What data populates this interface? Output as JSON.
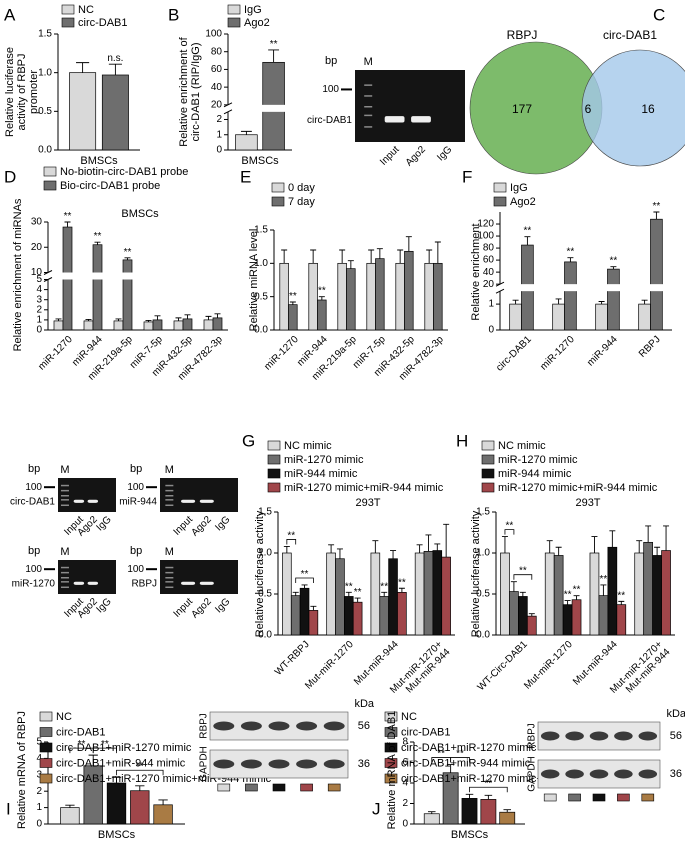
{
  "chart_data": [
    {
      "type": "bar",
      "panel": "A",
      "ylabel": "Relative luciferase activity of RBPJ promoter",
      "categories": [
        "BMSCs"
      ],
      "series": [
        {
          "name": "NC",
          "color": "#d9d9d9",
          "values": [
            1.0
          ],
          "errors": [
            0.13
          ]
        },
        {
          "name": "circ-DAB1",
          "color": "#6e6e6e",
          "values": [
            0.97
          ],
          "errors": [
            0.14
          ]
        }
      ],
      "ylim": [
        0,
        1.5
      ],
      "yticks": [
        {
          "value": 0,
          "label": "0.0"
        },
        0.5,
        {
          "value": 1,
          "label": "1.0"
        },
        1.5
      ],
      "significance": [
        {
          "label": "n.s.",
          "category": 0,
          "series": 1
        }
      ]
    },
    {
      "type": "bar",
      "panel": "B",
      "ylabel": "Relative enrichment of circ-DAB1 (RIP/IgG)",
      "categories": [
        "BMSCs"
      ],
      "series": [
        {
          "name": "IgG",
          "color": "#d9d9d9",
          "values": [
            1.0
          ],
          "errors": [
            0.22
          ]
        },
        {
          "name": "Ago2",
          "color": "#6e6e6e",
          "values": [
            68
          ],
          "errors": [
            14
          ]
        }
      ],
      "ysegments": [
        {
          "ylim": [
            0,
            2.5
          ],
          "yticks": [
            0,
            1,
            2
          ]
        },
        {
          "ylim": [
            20,
            100
          ],
          "yticks": [
            20,
            40,
            60,
            80,
            100
          ]
        }
      ],
      "significance": [
        {
          "label": "**",
          "category": 0,
          "series": 1
        }
      ],
      "gel": {
        "bp": "bp",
        "marker": "M",
        "size": 100,
        "band": "circ-DAB1",
        "lanes": [
          "Input",
          "Ago2",
          "IgG"
        ]
      }
    },
    {
      "type": "venn",
      "panel": "C",
      "sets": [
        {
          "name": "RBPJ",
          "color": "#7dbb6b",
          "count": 177
        },
        {
          "name": "circ-DAB1",
          "color": "#a4c8ea",
          "count": 16
        }
      ],
      "overlap": 6
    },
    {
      "type": "bar",
      "panel": "D",
      "ylabel": "Relative enrichment of miRNAs",
      "subtitle": "BMSCs",
      "categories": [
        "miR-1270",
        "miR-944",
        "miR-219a-5p",
        "miR-7-5p",
        "miR-432-5p",
        "miR-4782-3p"
      ],
      "series": [
        {
          "name": "No-biotin-circ-DAB1 probe",
          "color": "#d9d9d9",
          "values": [
            0.9,
            0.9,
            0.9,
            0.8,
            0.9,
            1.0
          ],
          "errors": [
            0.2,
            0.15,
            0.2,
            0.15,
            0.3,
            0.35
          ]
        },
        {
          "name": "Bio-circ-DAB1 probe",
          "color": "#6e6e6e",
          "values": [
            28,
            21,
            15,
            1.0,
            1.1,
            1.2
          ],
          "errors": [
            2,
            1,
            0.8,
            0.4,
            0.4,
            0.4
          ]
        }
      ],
      "ysegments": [
        {
          "ylim": [
            0,
            5
          ],
          "yticks": [
            0,
            1,
            2,
            3,
            4,
            5
          ]
        },
        {
          "ylim": [
            10,
            30
          ],
          "yticks": [
            10,
            20,
            30
          ]
        }
      ],
      "significance": [
        {
          "label": "**",
          "category": 0,
          "series": 1
        },
        {
          "label": "**",
          "category": 1,
          "series": 1
        },
        {
          "label": "**",
          "category": 2,
          "series": 1
        }
      ]
    },
    {
      "type": "bar",
      "panel": "E",
      "ylabel": "Relative miRNA level",
      "categories": [
        "miR-1270",
        "miR-944",
        "miR-219a-5p",
        "miR-7-5p",
        "miR-432-5p",
        "miR-4782-3p"
      ],
      "series": [
        {
          "name": "0 day",
          "color": "#d9d9d9",
          "values": [
            1,
            1,
            1,
            1,
            1,
            1
          ],
          "errors": [
            0.2,
            0.2,
            0.2,
            0.2,
            0.2,
            0.2
          ]
        },
        {
          "name": "7 day",
          "color": "#6e6e6e",
          "values": [
            0.38,
            0.45,
            0.92,
            1.07,
            1.18,
            1.0
          ],
          "errors": [
            0.04,
            0.05,
            0.12,
            0.15,
            0.22,
            0.32
          ]
        }
      ],
      "ylim": [
        0,
        1.5
      ],
      "yticks": [
        {
          "value": 0,
          "label": "0.0"
        },
        0.5,
        {
          "value": 1,
          "label": "1.0"
        },
        1.5
      ],
      "significance": [
        {
          "label": "**",
          "category": 0,
          "series": 1
        },
        {
          "label": "**",
          "category": 1,
          "series": 1
        }
      ]
    },
    {
      "type": "bar",
      "panel": "F",
      "ylabel": "Relative enrichment",
      "categories": [
        "circ-DAB1",
        "miR-1270",
        "miR-944",
        "RBPJ"
      ],
      "series": [
        {
          "name": "IgG",
          "color": "#d9d9d9",
          "values": [
            1,
            1,
            1,
            1
          ],
          "errors": [
            0.15,
            0.2,
            0.1,
            0.15
          ]
        },
        {
          "name": "Ago2",
          "color": "#6e6e6e",
          "values": [
            85,
            57,
            45,
            128
          ],
          "errors": [
            14,
            7,
            4,
            12
          ]
        }
      ],
      "ysegments": [
        {
          "ylim": [
            0,
            1.5
          ],
          "yticks": [
            0,
            1
          ]
        },
        {
          "ylim": [
            20,
            140
          ],
          "yticks": [
            20,
            40,
            60,
            80,
            100,
            120
          ]
        }
      ],
      "significance": [
        {
          "label": "**",
          "category": 0,
          "series": 1
        },
        {
          "label": "**",
          "category": 1,
          "series": 1
        },
        {
          "label": "**",
          "category": 2,
          "series": 1
        },
        {
          "label": "**",
          "category": 3,
          "series": 1
        }
      ]
    },
    {
      "type": "bar",
      "panel": "G",
      "ylabel": "Relative luciferase activity",
      "subtitle": "293T",
      "categories": [
        "WT-RBPJ",
        "Mut-miR-1270",
        "Mut-miR-944",
        "Mut-miR-1270+ Mut-miR-944"
      ],
      "series": [
        {
          "name": "NC mimic",
          "color": "#d9d9d9",
          "values": [
            1,
            1,
            1,
            1
          ],
          "errors": [
            0.08,
            0.1,
            0.15,
            0.1
          ]
        },
        {
          "name": "miR-1270 mimic",
          "color": "#6e6e6e",
          "values": [
            0.48,
            0.93,
            0.47,
            1.02
          ],
          "errors": [
            0.04,
            0.12,
            0.05,
            0.2
          ]
        },
        {
          "name": "miR-944 mimic",
          "color": "#111111",
          "values": [
            0.57,
            0.47,
            0.93,
            1.03
          ],
          "errors": [
            0.04,
            0.05,
            0.1,
            0.08
          ]
        },
        {
          "name": "miR-1270 mimic+miR-944 mimic",
          "color": "#a0464a",
          "values": [
            0.3,
            0.4,
            0.52,
            0.95
          ],
          "errors": [
            0.05,
            0.05,
            0.05,
            0.4
          ]
        }
      ],
      "ylim": [
        0,
        1.5
      ],
      "yticks": [
        {
          "value": 0,
          "label": "0.0"
        },
        0.5,
        {
          "value": 1,
          "label": "1.0"
        },
        1.5
      ],
      "significance": [
        {
          "label": "**",
          "category": 0,
          "series": [
            0,
            1
          ]
        },
        {
          "label": "**",
          "category": 0,
          "series": [
            1,
            3
          ]
        },
        {
          "label": "**",
          "category": 1,
          "series": 2
        },
        {
          "label": "**",
          "category": 1,
          "series": 3
        },
        {
          "label": "**",
          "category": 2,
          "series": 1
        },
        {
          "label": "**",
          "category": 2,
          "series": 3
        }
      ]
    },
    {
      "type": "bar",
      "panel": "H",
      "ylabel": "Relative luciferase activity",
      "subtitle": "293T",
      "categories": [
        "WT-Circ-DAB1",
        "Mut-miR-1270",
        "Mut-miR-944",
        "Mut-miR-1270+ Mut-miR-944"
      ],
      "series": [
        {
          "name": "NC mimic",
          "color": "#d9d9d9",
          "values": [
            1,
            1,
            1,
            1
          ],
          "errors": [
            0.2,
            0.15,
            0.2,
            0.15
          ]
        },
        {
          "name": "miR-1270 mimic",
          "color": "#6e6e6e",
          "values": [
            0.53,
            0.97,
            0.48,
            1.13
          ],
          "errors": [
            0.12,
            0.1,
            0.13,
            0.2
          ]
        },
        {
          "name": "miR-944 mimic",
          "color": "#111111",
          "values": [
            0.47,
            0.37,
            1.07,
            0.97
          ],
          "errors": [
            0.05,
            0.05,
            0.2,
            0.1
          ]
        },
        {
          "name": "miR-1270 mimic+miR-944 mimic",
          "color": "#a0464a",
          "values": [
            0.23,
            0.43,
            0.37,
            1.03
          ],
          "errors": [
            0.03,
            0.05,
            0.04,
            0.3
          ]
        }
      ],
      "ylim": [
        0,
        1.5
      ],
      "yticks": [
        {
          "value": 0,
          "label": "0.0"
        },
        0.5,
        {
          "value": 1,
          "label": "1.0"
        },
        1.5
      ],
      "significance": [
        {
          "label": "**",
          "category": 0,
          "series": [
            0,
            1
          ]
        },
        {
          "label": "**",
          "category": 0,
          "series": [
            1,
            3
          ]
        },
        {
          "label": "**",
          "category": 1,
          "series": 2
        },
        {
          "label": "**",
          "category": 1,
          "series": 3
        },
        {
          "label": "**",
          "category": 2,
          "series": 1
        },
        {
          "label": "**",
          "category": 2,
          "series": 3
        }
      ]
    },
    {
      "type": "bar",
      "panel": "I",
      "ylabel": "Relative mRNA of RBPJ",
      "categories": [
        "BMSCs"
      ],
      "series": [
        {
          "name": "NC",
          "color": "#d9d9d9",
          "values": [
            1.0
          ],
          "errors": [
            0.15
          ]
        },
        {
          "name": "circ-DAB1",
          "color": "#6e6e6e",
          "values": [
            3.55
          ],
          "errors": [
            0.65
          ]
        },
        {
          "name": "circ-DAB1+miR-1270 mimic",
          "color": "#111111",
          "values": [
            2.5
          ],
          "errors": [
            0.35
          ]
        },
        {
          "name": "circ-DAB1+miR-944 mimic",
          "color": "#a0464a",
          "values": [
            2.03
          ],
          "errors": [
            0.3
          ]
        },
        {
          "name": "circ-DAB1+miR-1270 mimic+miR-944 mimic",
          "color": "#a97b44",
          "values": [
            1.17
          ],
          "errors": [
            0.3
          ]
        }
      ],
      "ylim": [
        0,
        5
      ],
      "yticks": [
        0,
        1,
        2,
        3,
        4,
        5
      ],
      "significance": [
        {
          "label": "**",
          "category": 0,
          "series": [
            0,
            1
          ]
        },
        {
          "label": "**",
          "category": 0,
          "series": [
            1,
            2
          ]
        },
        {
          "label": "**",
          "category": 0,
          "series": [
            2,
            4
          ]
        }
      ],
      "blot": {
        "unit": "kDa",
        "rows": [
          {
            "name": "RBPJ",
            "size": 56
          },
          {
            "name": "GAPDH",
            "size": 36
          }
        ]
      }
    },
    {
      "type": "bar",
      "panel": "J",
      "ylabel": "Relative mRNA of DAB1",
      "categories": [
        "BMSCs"
      ],
      "series": [
        {
          "name": "NC",
          "color": "#d9d9d9",
          "values": [
            1.0
          ],
          "errors": [
            0.2
          ]
        },
        {
          "name": "circ-DAB1",
          "color": "#6e6e6e",
          "values": [
            5.0
          ],
          "errors": [
            0.8
          ]
        },
        {
          "name": "circ-DAB1+miR-1270 mimic",
          "color": "#111111",
          "values": [
            2.5
          ],
          "errors": [
            0.4
          ]
        },
        {
          "name": "circ-DAB1+miR-944 mimic",
          "color": "#a0464a",
          "values": [
            2.4
          ],
          "errors": [
            0.4
          ]
        },
        {
          "name": "circ-DAB1+miR-1270 mimic+miR-944 mimic",
          "color": "#a97b44",
          "values": [
            1.15
          ],
          "errors": [
            0.25
          ]
        }
      ],
      "ylim": [
        0,
        8
      ],
      "yticks": [
        0,
        2,
        4,
        6,
        8
      ],
      "significance": [
        {
          "label": "**",
          "category": 0,
          "series": [
            0,
            1
          ]
        },
        {
          "label": "**",
          "category": 0,
          "series": [
            1,
            2
          ]
        },
        {
          "label": "**",
          "category": 0,
          "series": [
            2,
            4
          ]
        }
      ],
      "blot": {
        "unit": "kDa",
        "rows": [
          {
            "name": "RBPJ",
            "size": 56
          },
          {
            "name": "GAPDH",
            "size": 36
          }
        ]
      }
    }
  ],
  "gels": [
    {
      "bp": "bp",
      "marker": "M",
      "size": 100,
      "band": "circ-DAB1",
      "lanes": [
        "Input",
        "Ago2",
        "IgG"
      ]
    },
    {
      "bp": "bp",
      "marker": "M",
      "size": 100,
      "band": "miR-944",
      "lanes": [
        "Input",
        "Ago2",
        "IgG"
      ]
    },
    {
      "bp": "bp",
      "marker": "M",
      "size": 100,
      "band": "miR-1270",
      "lanes": [
        "Input",
        "Ago2",
        "IgG"
      ]
    },
    {
      "bp": "bp",
      "marker": "M",
      "size": 100,
      "band": "RBPJ",
      "lanes": [
        "Input",
        "Ago2",
        "IgG"
      ]
    }
  ]
}
